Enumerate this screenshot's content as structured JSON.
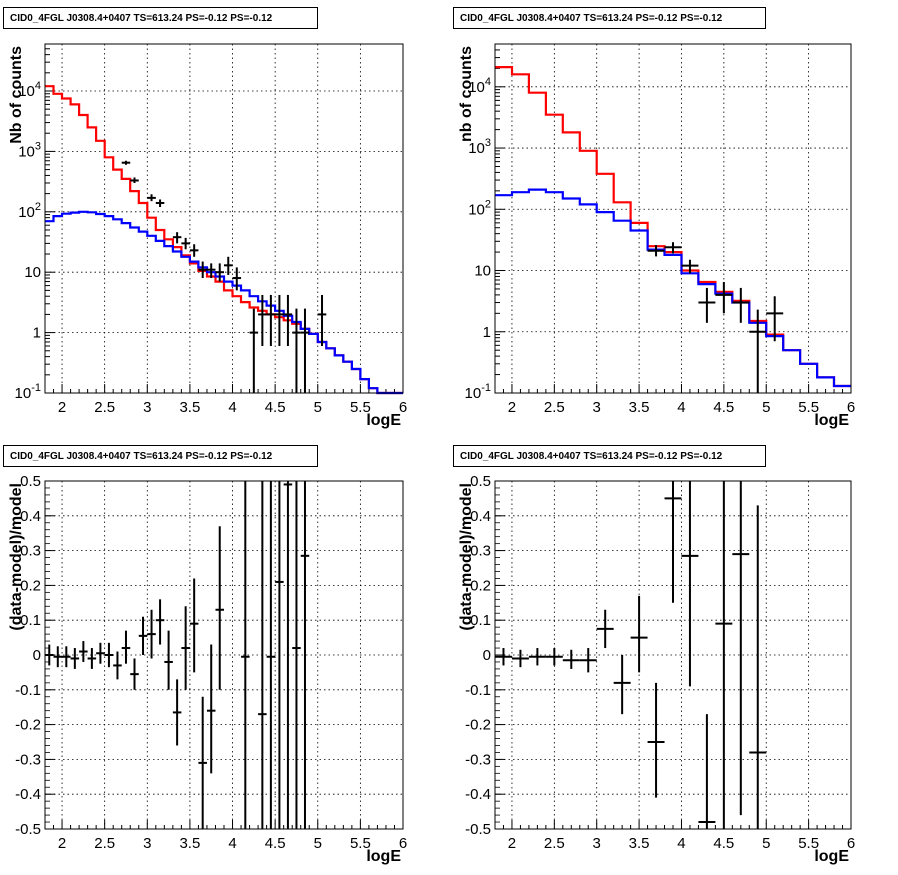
{
  "panels": [
    {
      "title": "CID0_4FGL J0308.4+0407 TS=613.24 PS=-0.12 PS=-0.12"
    },
    {
      "title": "CID0_4FGL J0308.4+0407 TS=613.24 PS=-0.12 PS=-0.12"
    },
    {
      "title": "CID0_4FGL J0308.4+0407 TS=613.24 PS=-0.12 PS=-0.12"
    },
    {
      "title": "CID0_4FGL J0308.4+0407 TS=613.24 PS=-0.12 PS=-0.12"
    }
  ],
  "colors": {
    "total_model": "#ff0000",
    "background_model": "#0000ff",
    "data": "#000000",
    "grid": "#000000"
  },
  "chart_data": [
    {
      "type": "line",
      "title": "CID0_4FGL J0308.4+0407 TS=613.24 PS=-0.12 PS=-0.12",
      "xlabel": "logE",
      "ylabel": "Nb of counts",
      "log_y": true,
      "xlim": [
        1.8,
        6
      ],
      "ylim": [
        0.1,
        60000
      ],
      "x_ticks": [
        "2",
        "2.5",
        "3",
        "3.5",
        "4",
        "4.5",
        "5",
        "5.5",
        "6"
      ],
      "y_ticks": [
        "10^-1",
        "1",
        "10",
        "10^2",
        "10^3",
        "10^4"
      ],
      "grid": true,
      "bin_edges": [
        1.8,
        1.9,
        2.0,
        2.1,
        2.2,
        2.3,
        2.4,
        2.5,
        2.6,
        2.7,
        2.8,
        2.9,
        3.0,
        3.1,
        3.2,
        3.3,
        3.4,
        3.5,
        3.6,
        3.7,
        3.8,
        3.9,
        4.0,
        4.1,
        4.2,
        4.3,
        4.4,
        4.5,
        4.6,
        4.7,
        4.8,
        4.9,
        5.0,
        5.1,
        5.2,
        5.3,
        5.4,
        5.5,
        5.6,
        5.7,
        5.8,
        5.9,
        6.0
      ],
      "series": [
        {
          "role": "total",
          "values": [
            12000,
            9000,
            7500,
            6000,
            4000,
            2500,
            1500,
            800,
            500,
            350,
            220,
            140,
            80,
            50,
            35,
            26,
            19,
            14,
            10.5,
            8.5,
            7,
            5,
            4,
            3.2,
            2.6,
            2.3,
            2,
            1.8,
            1.6,
            1.4,
            1.15,
            0.95,
            0.7,
            0.55,
            0.42,
            0.33,
            0.25,
            0.17,
            0.12,
            0.1,
            0.1,
            0.1
          ]
        },
        {
          "role": "background",
          "values": [
            70,
            85,
            93,
            97,
            100,
            98,
            92,
            85,
            75,
            65,
            55,
            47,
            40,
            33,
            27,
            22,
            18,
            15,
            12,
            10,
            8.5,
            7,
            6,
            5,
            4,
            3.3,
            2.8,
            2.3,
            1.9,
            1.5,
            1.15,
            0.95,
            0.7,
            0.55,
            0.42,
            0.33,
            0.25,
            0.17,
            0.12,
            0.1,
            0.1,
            0.1
          ]
        }
      ],
      "data_points": [
        {
          "x": 2.75,
          "y": 650,
          "lo": 600,
          "hi": 700
        },
        {
          "x": 2.85,
          "y": 330,
          "lo": 300,
          "hi": 370
        },
        {
          "x": 3.05,
          "y": 170,
          "lo": 150,
          "hi": 195
        },
        {
          "x": 3.15,
          "y": 140,
          "lo": 120,
          "hi": 160
        },
        {
          "x": 3.35,
          "y": 38,
          "lo": 30,
          "hi": 46
        },
        {
          "x": 3.45,
          "y": 30,
          "lo": 24,
          "hi": 37
        },
        {
          "x": 3.55,
          "y": 23,
          "lo": 18,
          "hi": 29
        },
        {
          "x": 3.65,
          "y": 11,
          "lo": 8,
          "hi": 15
        },
        {
          "x": 3.75,
          "y": 11,
          "lo": 8,
          "hi": 14
        },
        {
          "x": 3.85,
          "y": 10,
          "lo": 7,
          "hi": 14
        },
        {
          "x": 3.95,
          "y": 13,
          "lo": 9,
          "hi": 18
        },
        {
          "x": 4.05,
          "y": 8,
          "lo": 5,
          "hi": 12
        },
        {
          "x": 4.25,
          "y": 1,
          "lo": 0.1,
          "hi": 2.5
        },
        {
          "x": 4.35,
          "y": 2,
          "lo": 0.6,
          "hi": 4.2
        },
        {
          "x": 4.45,
          "y": 2,
          "lo": 0.6,
          "hi": 4.2
        },
        {
          "x": 4.55,
          "y": 2,
          "lo": 0.6,
          "hi": 4.2
        },
        {
          "x": 4.65,
          "y": 2,
          "lo": 0.6,
          "hi": 4.2
        },
        {
          "x": 4.75,
          "y": 1,
          "lo": 0.1,
          "hi": 2.5
        },
        {
          "x": 4.85,
          "y": 1,
          "lo": 0.1,
          "hi": 2.5
        },
        {
          "x": 5.05,
          "y": 2,
          "lo": 0.6,
          "hi": 4.2
        }
      ]
    },
    {
      "type": "line",
      "title": "CID0_4FGL J0308.4+0407 TS=613.24 PS=-0.12 PS=-0.12",
      "xlabel": "logE",
      "ylabel": "nb of counts",
      "log_y": true,
      "xlim": [
        1.8,
        6
      ],
      "ylim": [
        0.1,
        50000
      ],
      "x_ticks": [
        "2",
        "2.5",
        "3",
        "3.5",
        "4",
        "4.5",
        "5",
        "5.5",
        "6"
      ],
      "y_ticks": [
        "10^-1",
        "1",
        "10",
        "10^2",
        "10^3",
        "10^4"
      ],
      "grid": true,
      "bin_edges": [
        1.8,
        2.0,
        2.2,
        2.4,
        2.6,
        2.8,
        3.0,
        3.2,
        3.4,
        3.6,
        3.8,
        4.0,
        4.2,
        4.4,
        4.6,
        4.8,
        5.0,
        5.2,
        5.4,
        5.6,
        5.8,
        6.0
      ],
      "series": [
        {
          "role": "total",
          "values": [
            21000,
            16000,
            8000,
            3500,
            1800,
            900,
            380,
            130,
            60,
            25,
            20,
            10,
            6.5,
            4.5,
            3.2,
            1.5,
            0.9,
            0.5,
            0.3,
            0.18,
            0.13
          ]
        },
        {
          "role": "background",
          "values": [
            170,
            190,
            210,
            190,
            150,
            120,
            90,
            65,
            45,
            22,
            18,
            9,
            6,
            4.2,
            3,
            1.4,
            0.85,
            0.5,
            0.3,
            0.18,
            0.13
          ]
        }
      ],
      "data_points": [
        {
          "x": 3.7,
          "y": 21,
          "lo": 17,
          "hi": 26
        },
        {
          "x": 3.9,
          "y": 24,
          "lo": 19,
          "hi": 29
        },
        {
          "x": 4.1,
          "y": 12,
          "lo": 9,
          "hi": 15
        },
        {
          "x": 4.3,
          "y": 3,
          "lo": 1.4,
          "hi": 5.2
        },
        {
          "x": 4.5,
          "y": 4,
          "lo": 2,
          "hi": 6.5
        },
        {
          "x": 4.7,
          "y": 3,
          "lo": 1.4,
          "hi": 5.2
        },
        {
          "x": 4.9,
          "y": 1,
          "lo": 0.1,
          "hi": 2.3
        },
        {
          "x": 5.1,
          "y": 2,
          "lo": 0.7,
          "hi": 3.8
        }
      ]
    },
    {
      "type": "scatter",
      "title": "CID0_4FGL J0308.4+0407 TS=613.24 PS=-0.12 PS=-0.12",
      "xlabel": "logE",
      "ylabel": "(data-model)/model",
      "xlim": [
        1.8,
        6
      ],
      "ylim": [
        -0.5,
        0.5
      ],
      "x_ticks": [
        "2",
        "2.5",
        "3",
        "3.5",
        "4",
        "4.5",
        "5",
        "5.5",
        "6"
      ],
      "y_ticks": [
        "-0.5",
        "-0.4",
        "-0.3",
        "-0.2",
        "-0.1",
        "0",
        "0.1",
        "0.2",
        "0.3",
        "0.4",
        "0.5"
      ],
      "grid": true,
      "bin_width": 0.1,
      "data_points": [
        {
          "x": 1.85,
          "y": 0.0,
          "lo": -0.03,
          "hi": 0.03
        },
        {
          "x": 1.95,
          "y": -0.005,
          "lo": -0.035,
          "hi": 0.025
        },
        {
          "x": 2.05,
          "y": -0.005,
          "lo": -0.035,
          "hi": 0.025
        },
        {
          "x": 2.15,
          "y": -0.01,
          "lo": -0.04,
          "hi": 0.02
        },
        {
          "x": 2.25,
          "y": 0.01,
          "lo": -0.02,
          "hi": 0.04
        },
        {
          "x": 2.35,
          "y": -0.01,
          "lo": -0.04,
          "hi": 0.02
        },
        {
          "x": 2.45,
          "y": 0.005,
          "lo": -0.025,
          "hi": 0.035
        },
        {
          "x": 2.55,
          "y": 0.0,
          "lo": -0.035,
          "hi": 0.035
        },
        {
          "x": 2.65,
          "y": -0.03,
          "lo": -0.07,
          "hi": 0.01
        },
        {
          "x": 2.75,
          "y": 0.02,
          "lo": -0.025,
          "hi": 0.07
        },
        {
          "x": 2.85,
          "y": -0.055,
          "lo": -0.1,
          "hi": -0.01
        },
        {
          "x": 2.95,
          "y": 0.055,
          "lo": 0.0,
          "hi": 0.11
        },
        {
          "x": 3.05,
          "y": 0.06,
          "lo": -0.01,
          "hi": 0.13
        },
        {
          "x": 3.15,
          "y": 0.1,
          "lo": 0.03,
          "hi": 0.16
        },
        {
          "x": 3.25,
          "y": -0.02,
          "lo": -0.1,
          "hi": 0.07
        },
        {
          "x": 3.35,
          "y": -0.165,
          "lo": -0.26,
          "hi": -0.07
        },
        {
          "x": 3.45,
          "y": 0.02,
          "lo": -0.1,
          "hi": 0.14
        },
        {
          "x": 3.55,
          "y": 0.09,
          "lo": -0.05,
          "hi": 0.22
        },
        {
          "x": 3.65,
          "y": -0.31,
          "lo": -0.5,
          "hi": -0.12
        },
        {
          "x": 3.75,
          "y": -0.16,
          "lo": -0.34,
          "hi": 0.03
        },
        {
          "x": 3.85,
          "y": 0.13,
          "lo": -0.1,
          "hi": 0.37
        },
        {
          "x": 4.15,
          "y": -0.005,
          "lo": -0.5,
          "hi": 0.5
        },
        {
          "x": 4.35,
          "y": -0.17,
          "lo": -0.5,
          "hi": 0.5
        },
        {
          "x": 4.45,
          "y": -0.005,
          "lo": -0.5,
          "hi": 0.5
        },
        {
          "x": 4.55,
          "y": 0.21,
          "lo": -0.5,
          "hi": 0.5
        },
        {
          "x": 4.65,
          "y": 0.49,
          "lo": -0.5,
          "hi": 0.5
        },
        {
          "x": 4.75,
          "y": 0.02,
          "lo": -0.5,
          "hi": 0.5
        },
        {
          "x": 4.85,
          "y": 0.285,
          "lo": -0.5,
          "hi": 0.5
        }
      ]
    },
    {
      "type": "scatter",
      "title": "CID0_4FGL J0308.4+0407 TS=613.24 PS=-0.12 PS=-0.12",
      "xlabel": "logE",
      "ylabel": "(data-model)/model",
      "xlim": [
        1.8,
        6
      ],
      "ylim": [
        -0.5,
        0.5
      ],
      "x_ticks": [
        "2",
        "2.5",
        "3",
        "3.5",
        "4",
        "4.5",
        "5",
        "5.5",
        "6"
      ],
      "y_ticks": [
        "-0.5",
        "-0.4",
        "-0.3",
        "-0.2",
        "-0.1",
        "0",
        "0.1",
        "0.2",
        "0.3",
        "0.4",
        "0.5"
      ],
      "grid": true,
      "bin_width": 0.2,
      "data_points": [
        {
          "x": 1.9,
          "y": -0.005,
          "lo": -0.03,
          "hi": 0.02
        },
        {
          "x": 2.1,
          "y": -0.01,
          "lo": -0.035,
          "hi": 0.015
        },
        {
          "x": 2.3,
          "y": -0.005,
          "lo": -0.03,
          "hi": 0.02
        },
        {
          "x": 2.5,
          "y": -0.005,
          "lo": -0.03,
          "hi": 0.02
        },
        {
          "x": 2.7,
          "y": -0.015,
          "lo": -0.04,
          "hi": 0.015
        },
        {
          "x": 2.9,
          "y": -0.015,
          "lo": -0.05,
          "hi": 0.02
        },
        {
          "x": 3.1,
          "y": 0.075,
          "lo": 0.02,
          "hi": 0.13
        },
        {
          "x": 3.3,
          "y": -0.08,
          "lo": -0.17,
          "hi": 0.0
        },
        {
          "x": 3.5,
          "y": 0.05,
          "lo": -0.05,
          "hi": 0.17
        },
        {
          "x": 3.7,
          "y": -0.25,
          "lo": -0.41,
          "hi": -0.08
        },
        {
          "x": 3.9,
          "y": 0.45,
          "lo": 0.15,
          "hi": 0.5
        },
        {
          "x": 4.1,
          "y": 0.285,
          "lo": -0.09,
          "hi": 0.5
        },
        {
          "x": 4.3,
          "y": -0.48,
          "lo": -0.5,
          "hi": -0.17
        },
        {
          "x": 4.5,
          "y": 0.09,
          "lo": -0.5,
          "hi": 0.5
        },
        {
          "x": 4.7,
          "y": 0.29,
          "lo": -0.46,
          "hi": 0.5
        },
        {
          "x": 4.9,
          "y": -0.28,
          "lo": -0.5,
          "hi": 0.43
        }
      ]
    }
  ]
}
